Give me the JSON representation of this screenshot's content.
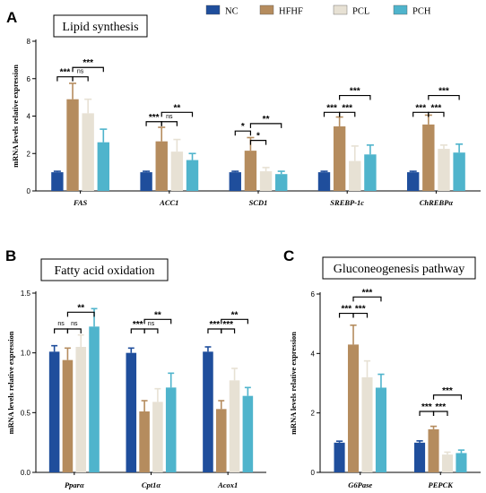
{
  "legend": {
    "items": [
      {
        "label": "NC",
        "color": "#1f4e9c"
      },
      {
        "label": "HFHF",
        "color": "#b58c5e"
      },
      {
        "label": "PCL",
        "color": "#e7e1d4"
      },
      {
        "label": "PCH",
        "color": "#4fb4cc"
      }
    ]
  },
  "chart_data": [
    {
      "type": "bar",
      "panel_letter": "A",
      "title": "Lipid synthesis",
      "ylabel": "mRNA levels relative expression",
      "ylim": [
        0,
        8
      ],
      "yticks": [
        "0",
        "2",
        "4",
        "6",
        "8"
      ],
      "categories": [
        "FAS",
        "ACC1",
        "SCD1",
        "SREBP-1c",
        "ChREBPα"
      ],
      "series": [
        {
          "name": "NC",
          "values": [
            1.0,
            1.0,
            1.0,
            1.0,
            1.0
          ],
          "errors": [
            0.05,
            0.05,
            0.05,
            0.05,
            0.05
          ]
        },
        {
          "name": "HFHF",
          "values": [
            4.9,
            2.65,
            2.15,
            3.45,
            3.55
          ],
          "errors": [
            0.85,
            0.75,
            0.7,
            0.5,
            0.5
          ]
        },
        {
          "name": "PCL",
          "values": [
            4.15,
            2.1,
            1.05,
            1.6,
            2.25
          ],
          "errors": [
            0.75,
            0.65,
            0.2,
            0.8,
            0.2
          ]
        },
        {
          "name": "PCH",
          "values": [
            2.6,
            1.65,
            0.9,
            1.95,
            2.05
          ],
          "errors": [
            0.7,
            0.35,
            0.15,
            0.5,
            0.45
          ]
        }
      ],
      "significance": [
        {
          "cat": 0,
          "from": 0,
          "to": 1,
          "label": "***",
          "level": 6.1
        },
        {
          "cat": 0,
          "from": 1,
          "to": 2,
          "label": "ns",
          "level": 6.1
        },
        {
          "cat": 0,
          "from": 1,
          "to": 3,
          "label": "***",
          "level": 6.6
        },
        {
          "cat": 1,
          "from": 0,
          "to": 1,
          "label": "***",
          "level": 3.7
        },
        {
          "cat": 1,
          "from": 1,
          "to": 2,
          "label": "ns",
          "level": 3.7
        },
        {
          "cat": 1,
          "from": 1,
          "to": 3,
          "label": "**",
          "level": 4.2
        },
        {
          "cat": 2,
          "from": 0,
          "to": 1,
          "label": "*",
          "level": 3.2
        },
        {
          "cat": 2,
          "from": 1,
          "to": 2,
          "label": "*",
          "level": 2.7
        },
        {
          "cat": 2,
          "from": 1,
          "to": 3,
          "label": "**",
          "level": 3.6
        },
        {
          "cat": 3,
          "from": 0,
          "to": 1,
          "label": "***",
          "level": 4.2
        },
        {
          "cat": 3,
          "from": 1,
          "to": 2,
          "label": "***",
          "level": 4.2
        },
        {
          "cat": 3,
          "from": 1,
          "to": 3,
          "label": "***",
          "level": 5.1
        },
        {
          "cat": 4,
          "from": 0,
          "to": 1,
          "label": "***",
          "level": 4.2
        },
        {
          "cat": 4,
          "from": 1,
          "to": 2,
          "label": "***",
          "level": 4.2
        },
        {
          "cat": 4,
          "from": 1,
          "to": 3,
          "label": "***",
          "level": 5.1
        }
      ]
    },
    {
      "type": "bar",
      "panel_letter": "B",
      "title": "Fatty acid oxidation",
      "ylabel": "mRNA levels relative expression",
      "ylim": [
        0,
        1.5
      ],
      "yticks": [
        "0.0",
        "0.5",
        "1.0",
        "1.5"
      ],
      "categories": [
        "Pparα",
        "Cpt1α",
        "Acox1"
      ],
      "series": [
        {
          "name": "NC",
          "values": [
            1.01,
            1.0,
            1.01
          ],
          "errors": [
            0.05,
            0.04,
            0.04
          ]
        },
        {
          "name": "HFHF",
          "values": [
            0.94,
            0.51,
            0.53
          ],
          "errors": [
            0.1,
            0.09,
            0.07
          ]
        },
        {
          "name": "PCL",
          "values": [
            1.05,
            0.59,
            0.77
          ],
          "errors": [
            0.1,
            0.11,
            0.1
          ]
        },
        {
          "name": "PCH",
          "values": [
            1.22,
            0.71,
            0.64
          ],
          "errors": [
            0.15,
            0.12,
            0.07
          ]
        }
      ],
      "significance": [
        {
          "cat": 0,
          "from": 0,
          "to": 1,
          "label": "ns",
          "level": 1.2
        },
        {
          "cat": 0,
          "from": 1,
          "to": 2,
          "label": "ns",
          "level": 1.2
        },
        {
          "cat": 0,
          "from": 1,
          "to": 3,
          "label": "**",
          "level": 1.34
        },
        {
          "cat": 1,
          "from": 0,
          "to": 1,
          "label": "***",
          "level": 1.2
        },
        {
          "cat": 1,
          "from": 1,
          "to": 2,
          "label": "ns",
          "level": 1.2
        },
        {
          "cat": 1,
          "from": 1,
          "to": 3,
          "label": "**",
          "level": 1.28
        },
        {
          "cat": 2,
          "from": 0,
          "to": 1,
          "label": "***",
          "level": 1.2
        },
        {
          "cat": 2,
          "from": 1,
          "to": 2,
          "label": "***",
          "level": 1.2
        },
        {
          "cat": 2,
          "from": 1,
          "to": 3,
          "label": "**",
          "level": 1.28
        }
      ]
    },
    {
      "type": "bar",
      "panel_letter": "C",
      "title": "Gluconeogenesis pathway",
      "ylabel": "mRNA levels relative expression",
      "ylim": [
        0,
        6
      ],
      "yticks": [
        "0",
        "2",
        "4",
        "6"
      ],
      "categories": [
        "G6Pase",
        "PEPCK"
      ],
      "series": [
        {
          "name": "NC",
          "values": [
            1.0,
            1.0
          ],
          "errors": [
            0.05,
            0.06
          ]
        },
        {
          "name": "HFHF",
          "values": [
            4.3,
            1.45
          ],
          "errors": [
            0.65,
            0.1
          ]
        },
        {
          "name": "PCL",
          "values": [
            3.2,
            0.6
          ],
          "errors": [
            0.55,
            0.08
          ]
        },
        {
          "name": "PCH",
          "values": [
            2.85,
            0.65
          ],
          "errors": [
            0.45,
            0.1
          ]
        }
      ],
      "significance": [
        {
          "cat": 0,
          "from": 0,
          "to": 1,
          "label": "***",
          "level": 5.35
        },
        {
          "cat": 0,
          "from": 1,
          "to": 2,
          "label": "***",
          "level": 5.35
        },
        {
          "cat": 0,
          "from": 1,
          "to": 3,
          "label": "***",
          "level": 5.9
        },
        {
          "cat": 1,
          "from": 0,
          "to": 1,
          "label": "***",
          "level": 2.05
        },
        {
          "cat": 1,
          "from": 1,
          "to": 2,
          "label": "***",
          "level": 2.05
        },
        {
          "cat": 1,
          "from": 1,
          "to": 3,
          "label": "***",
          "level": 2.6
        }
      ]
    }
  ]
}
